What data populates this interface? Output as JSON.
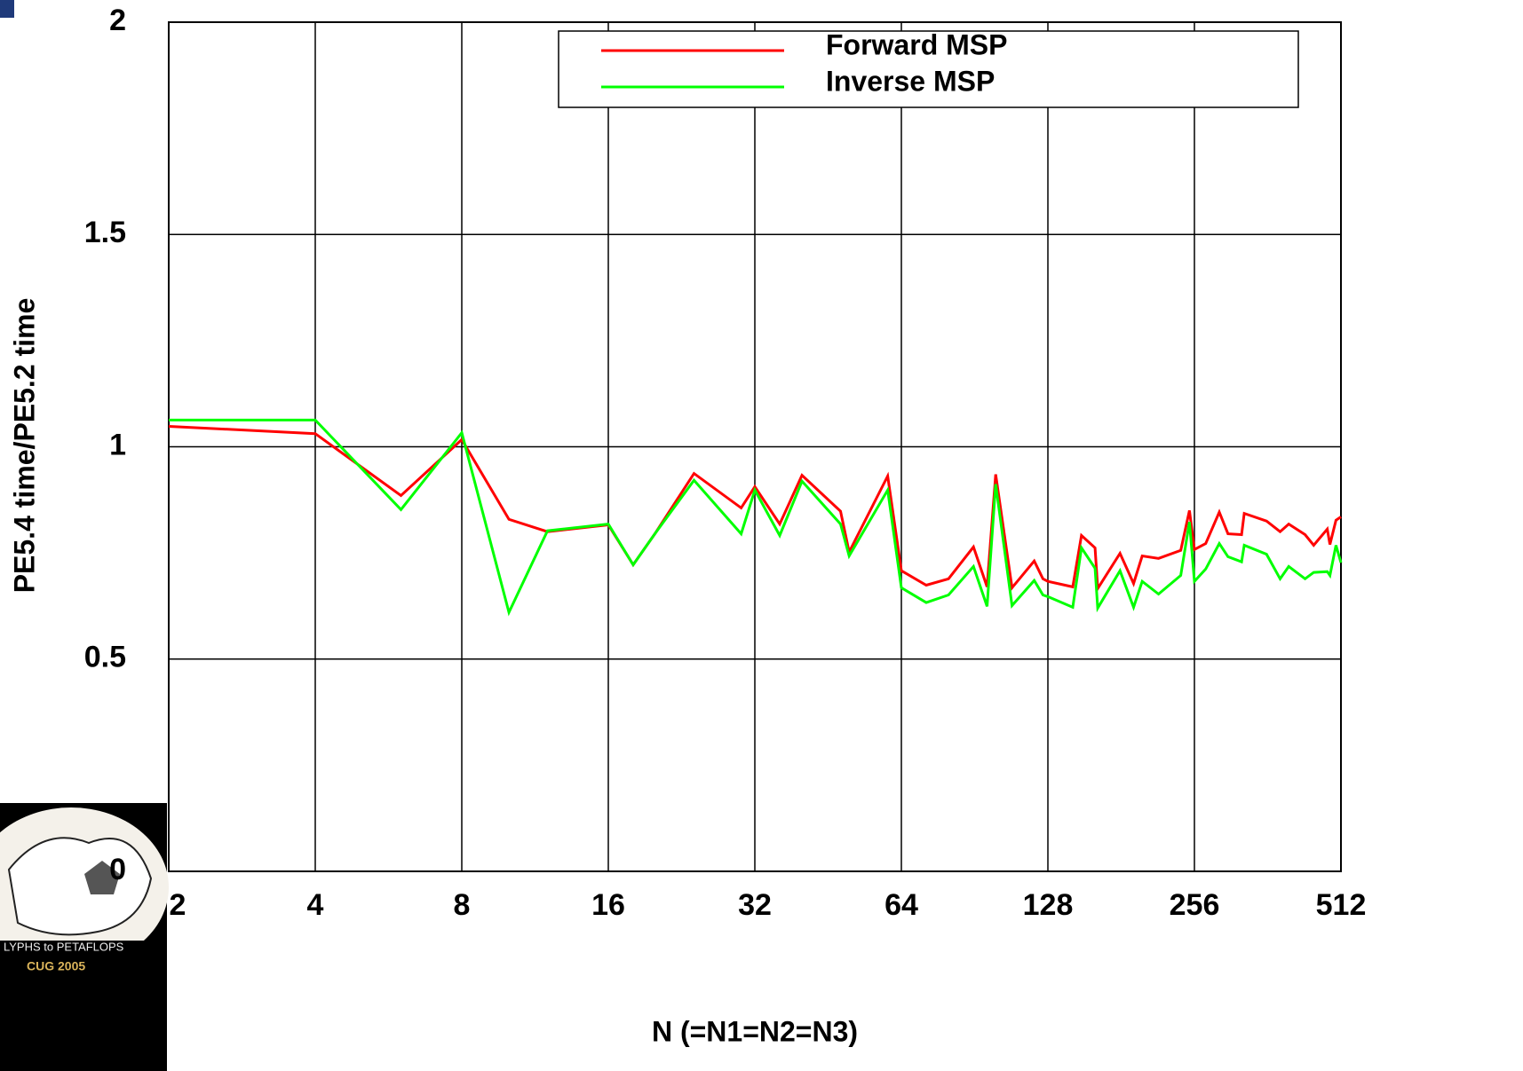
{
  "chart_data": {
    "type": "line",
    "xlabel": "N (=N1=N2=N3)",
    "ylabel": "PE5.4 time/PE5.2 time",
    "xscale": "log2",
    "xlim": [
      2,
      512
    ],
    "xticks": [
      2,
      4,
      8,
      16,
      32,
      64,
      128,
      256,
      512
    ],
    "ylim": [
      0,
      2
    ],
    "yticks": [
      0,
      0.5,
      1,
      1.5,
      2
    ],
    "grid": true,
    "legend": "top-right",
    "x": [
      2,
      4,
      6,
      8,
      10,
      12,
      16,
      18,
      20,
      24,
      30,
      32,
      36,
      40,
      48,
      50,
      60,
      64,
      72,
      80,
      90,
      96,
      100,
      108,
      120,
      125,
      128,
      144,
      150,
      160,
      162,
      180,
      192,
      200,
      216,
      240,
      250,
      256,
      270,
      288,
      300,
      320,
      324,
      360,
      384,
      400,
      432,
      450,
      480,
      486,
      500,
      512
    ],
    "series": [
      {
        "name": "Forward MSP",
        "color": "#ff0000",
        "values": [
          1.048,
          1.031,
          0.885,
          1.017,
          0.829,
          0.8,
          0.816,
          0.722,
          0.797,
          0.937,
          0.856,
          0.906,
          0.818,
          0.933,
          0.848,
          0.752,
          0.931,
          0.708,
          0.674,
          0.689,
          0.764,
          0.67,
          0.935,
          0.668,
          0.731,
          0.689,
          0.683,
          0.67,
          0.791,
          0.762,
          0.666,
          0.749,
          0.678,
          0.743,
          0.737,
          0.756,
          0.85,
          0.758,
          0.772,
          0.846,
          0.795,
          0.793,
          0.843,
          0.825,
          0.8,
          0.818,
          0.793,
          0.768,
          0.806,
          0.77,
          0.827,
          0.835
        ]
      },
      {
        "name": "Inverse MSP",
        "color": "#00ff00",
        "values": [
          1.063,
          1.063,
          0.852,
          1.033,
          0.61,
          0.802,
          0.818,
          0.722,
          0.797,
          0.921,
          0.795,
          0.898,
          0.791,
          0.919,
          0.818,
          0.743,
          0.898,
          0.668,
          0.633,
          0.651,
          0.718,
          0.624,
          0.912,
          0.626,
          0.685,
          0.651,
          0.647,
          0.622,
          0.762,
          0.714,
          0.62,
          0.708,
          0.622,
          0.683,
          0.653,
          0.697,
          0.823,
          0.683,
          0.712,
          0.772,
          0.741,
          0.729,
          0.768,
          0.747,
          0.689,
          0.718,
          0.689,
          0.704,
          0.706,
          0.697,
          0.768,
          0.727
        ]
      }
    ]
  },
  "logo": {
    "line1": "LYPHS to PETAFLOPS",
    "line2": "CUG 2005"
  }
}
